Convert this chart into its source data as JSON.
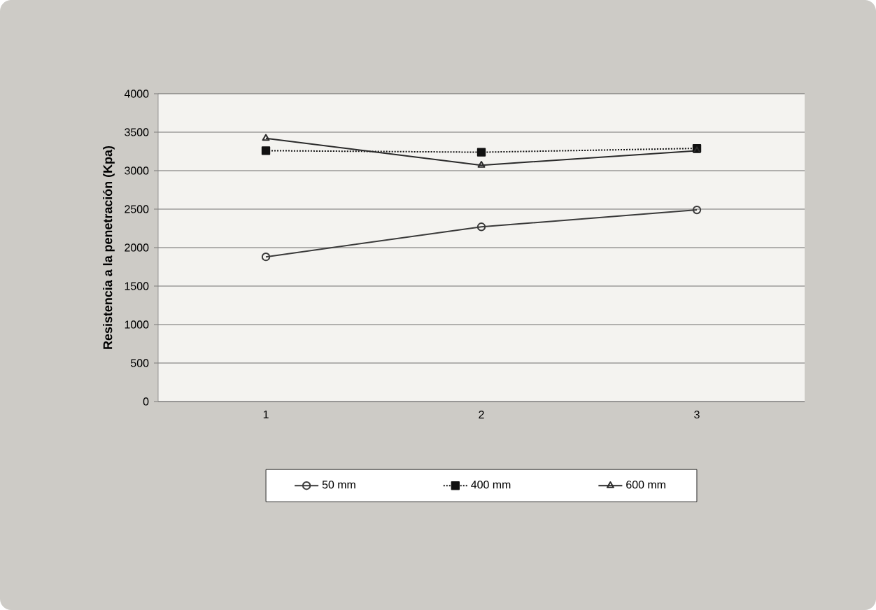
{
  "chart_data": {
    "type": "line",
    "ylabel": "Resistencia a la penetración (Kpa)",
    "categories": [
      "1",
      "2",
      "3"
    ],
    "series": [
      {
        "name": "50 mm",
        "color": "#3a3a3a",
        "marker": "circle",
        "line_style": "solid",
        "values": [
          1880,
          2270,
          2490
        ]
      },
      {
        "name": "400 mm",
        "color": "#111111",
        "marker": "square",
        "line_style": "dotted",
        "values": [
          3260,
          3240,
          3290
        ]
      },
      {
        "name": "600 mm",
        "color": "#2a2a2a",
        "marker": "triangle",
        "line_style": "solid",
        "values": [
          3420,
          3070,
          3260
        ]
      }
    ],
    "ylim": [
      0,
      4000
    ],
    "yticks": [
      0,
      500,
      1000,
      1500,
      2000,
      2500,
      3000,
      3500,
      4000
    ],
    "grid": "y",
    "legend": "bottom"
  }
}
